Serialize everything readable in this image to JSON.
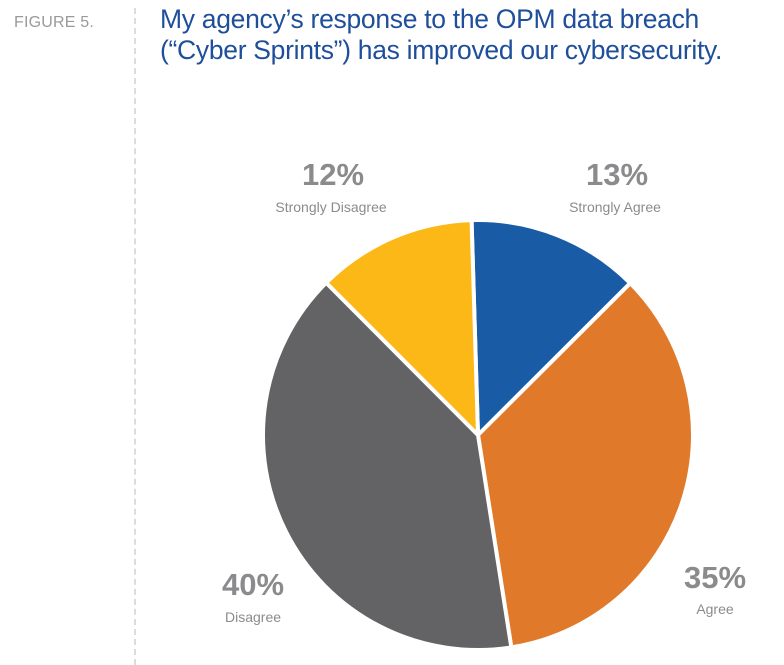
{
  "figure_label": "FIGURE 5.",
  "title_lines": [
    "My agency’s response to the OPM data breach",
    "(“Cyber Sprints”) has improved our cybersecurity."
  ],
  "chart_data": {
    "type": "pie",
    "title": "My agency’s response to the OPM data breach (“Cyber Sprints”) has improved our cybersecurity.",
    "slices": [
      {
        "label": "Strongly Agree",
        "value": 13,
        "display": "13%",
        "color": "#1a5ba6"
      },
      {
        "label": "Agree",
        "value": 35,
        "display": "35%",
        "color": "#e07a2a"
      },
      {
        "label": "Disagree",
        "value": 40,
        "display": "40%",
        "color": "#636365"
      },
      {
        "label": "Strongly Disagree",
        "value": 12,
        "display": "12%",
        "color": "#fbb817"
      }
    ],
    "start": "top",
    "direction": "clockwise"
  }
}
